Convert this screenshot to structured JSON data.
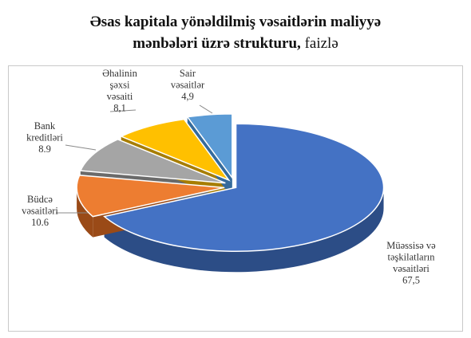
{
  "title": {
    "line1": "Əsas kapitala yönəldilmiş vəsaitlərin maliyyə",
    "line2_bold": "mənbələri üzrə strukturu,",
    "line2_rest": " faizlə"
  },
  "chart_data": {
    "type": "pie",
    "title": "Əsas kapitala yönəldilmiş vəsaitlərin maliyyə mənbələri üzrə strukturu, faizlə",
    "slices": [
      {
        "name": "Müəssisə və təşkilatların vəsaitləri",
        "label_lines": [
          "Müəssisə və",
          "təşkilatların",
          "vəsaitləri"
        ],
        "value": 67.5,
        "value_label": "67,5",
        "color": "#4472C4",
        "side": "#2C4D86"
      },
      {
        "name": "Büdcə vəsaitləri",
        "label_lines": [
          "Büdcə",
          "vəsaitləri"
        ],
        "value": 10.6,
        "value_label": "10.6",
        "color": "#ED7D31",
        "side": "#9A4A17"
      },
      {
        "name": "Bank kreditləri",
        "label_lines": [
          "Bank",
          "kreditləri"
        ],
        "value": 8.9,
        "value_label": "8.9",
        "color": "#A5A5A5",
        "side": "#6A6A6A"
      },
      {
        "name": "Əhalinin şəxsi vəsaiti",
        "label_lines": [
          "Əhalinin",
          "şəxsi",
          "vəsaiti"
        ],
        "value": 8.1,
        "value_label": "8,1",
        "color": "#FFC000",
        "side": "#A77D00"
      },
      {
        "name": "Sair vəsaitlər",
        "label_lines": [
          "Sair",
          "vəsaitlər"
        ],
        "value": 4.9,
        "value_label": "4,9",
        "color": "#5B9BD5",
        "side": "#356B9C"
      }
    ],
    "legend": "none",
    "exploded": true,
    "style": "3d"
  }
}
